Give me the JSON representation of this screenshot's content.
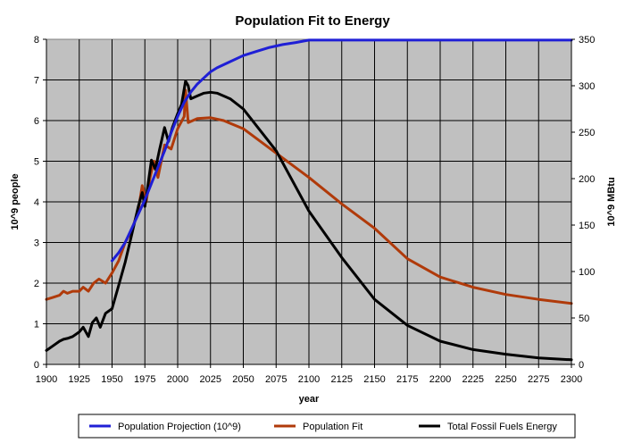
{
  "chart_data": {
    "type": "line",
    "title": "Population Fit to Energy",
    "xlabel": "year",
    "ylabel_left": "10^9 people",
    "ylabel_right": "10^9 MBtu",
    "xlim": [
      1900,
      2300
    ],
    "ylim_left": [
      0,
      8
    ],
    "ylim_right": [
      0,
      350
    ],
    "x_ticks": [
      1900,
      1925,
      1950,
      1975,
      2000,
      2025,
      2050,
      2075,
      2100,
      2125,
      2150,
      2175,
      2200,
      2225,
      2250,
      2275,
      2300
    ],
    "y_left_ticks": [
      0,
      1,
      2,
      3,
      4,
      5,
      6,
      7,
      8
    ],
    "y_right_ticks": [
      0,
      50,
      100,
      150,
      200,
      250,
      300,
      350
    ],
    "grid": true,
    "legend_position": "bottom",
    "plot_background": "#c0c0c0",
    "series": [
      {
        "name": "Population Projection (10^9)",
        "color": "#1f1fd6",
        "axis": "left",
        "x": [
          1950,
          1955,
          1960,
          1965,
          1970,
          1975,
          1980,
          1985,
          1990,
          1995,
          2000,
          2005,
          2010,
          2015,
          2020,
          2025,
          2030,
          2040,
          2050,
          2060,
          2070,
          2080,
          2090,
          2100,
          2150,
          2200,
          2250,
          2300
        ],
        "y": [
          2.55,
          2.75,
          3.0,
          3.35,
          3.7,
          4.05,
          4.45,
          4.85,
          5.25,
          5.7,
          6.1,
          6.45,
          6.7,
          6.9,
          7.05,
          7.2,
          7.3,
          7.45,
          7.6,
          7.7,
          7.8,
          7.87,
          7.92,
          7.98,
          7.98,
          7.98,
          7.98,
          7.98
        ]
      },
      {
        "name": "Population Fit",
        "color": "#b03a0a",
        "axis": "left",
        "x": [
          1900,
          1905,
          1910,
          1913,
          1916,
          1920,
          1925,
          1928,
          1932,
          1936,
          1940,
          1945,
          1950,
          1955,
          1960,
          1965,
          1970,
          1973,
          1976,
          1979,
          1982,
          1985,
          1990,
          1995,
          2000,
          2005,
          2006,
          2008,
          2015,
          2025,
          2035,
          2050,
          2075,
          2100,
          2125,
          2150,
          2175,
          2200,
          2225,
          2250,
          2275,
          2300
        ],
        "y": [
          1.6,
          1.65,
          1.7,
          1.8,
          1.75,
          1.8,
          1.8,
          1.9,
          1.8,
          2.0,
          2.1,
          2.0,
          2.25,
          2.55,
          3.0,
          3.3,
          3.8,
          4.4,
          4.0,
          4.6,
          5.0,
          4.6,
          5.4,
          5.3,
          5.8,
          6.1,
          6.75,
          5.95,
          6.05,
          6.07,
          6.0,
          5.8,
          5.2,
          4.6,
          3.95,
          3.35,
          2.6,
          2.15,
          1.9,
          1.72,
          1.6,
          1.5
        ]
      },
      {
        "name": "Total Fossil Fuels Energy",
        "color": "#000000",
        "axis": "right",
        "x": [
          1900,
          1905,
          1910,
          1913,
          1916,
          1920,
          1925,
          1928,
          1932,
          1935,
          1938,
          1941,
          1945,
          1950,
          1955,
          1960,
          1965,
          1970,
          1973,
          1975,
          1978,
          1980,
          1983,
          1986,
          1990,
          1993,
          1996,
          2000,
          2003,
          2006,
          2008,
          2010,
          2015,
          2020,
          2025,
          2030,
          2040,
          2050,
          2075,
          2100,
          2125,
          2150,
          2175,
          2200,
          2225,
          2250,
          2275,
          2300
        ],
        "y": [
          15,
          20,
          25,
          27,
          28,
          30,
          35,
          40,
          30,
          45,
          50,
          40,
          55,
          60,
          85,
          110,
          140,
          170,
          185,
          170,
          200,
          220,
          210,
          230,
          255,
          240,
          255,
          270,
          280,
          305,
          300,
          286,
          289,
          292,
          293,
          292,
          286,
          275,
          230,
          165,
          115,
          70,
          42,
          25,
          16,
          11,
          7,
          5
        ]
      }
    ]
  }
}
